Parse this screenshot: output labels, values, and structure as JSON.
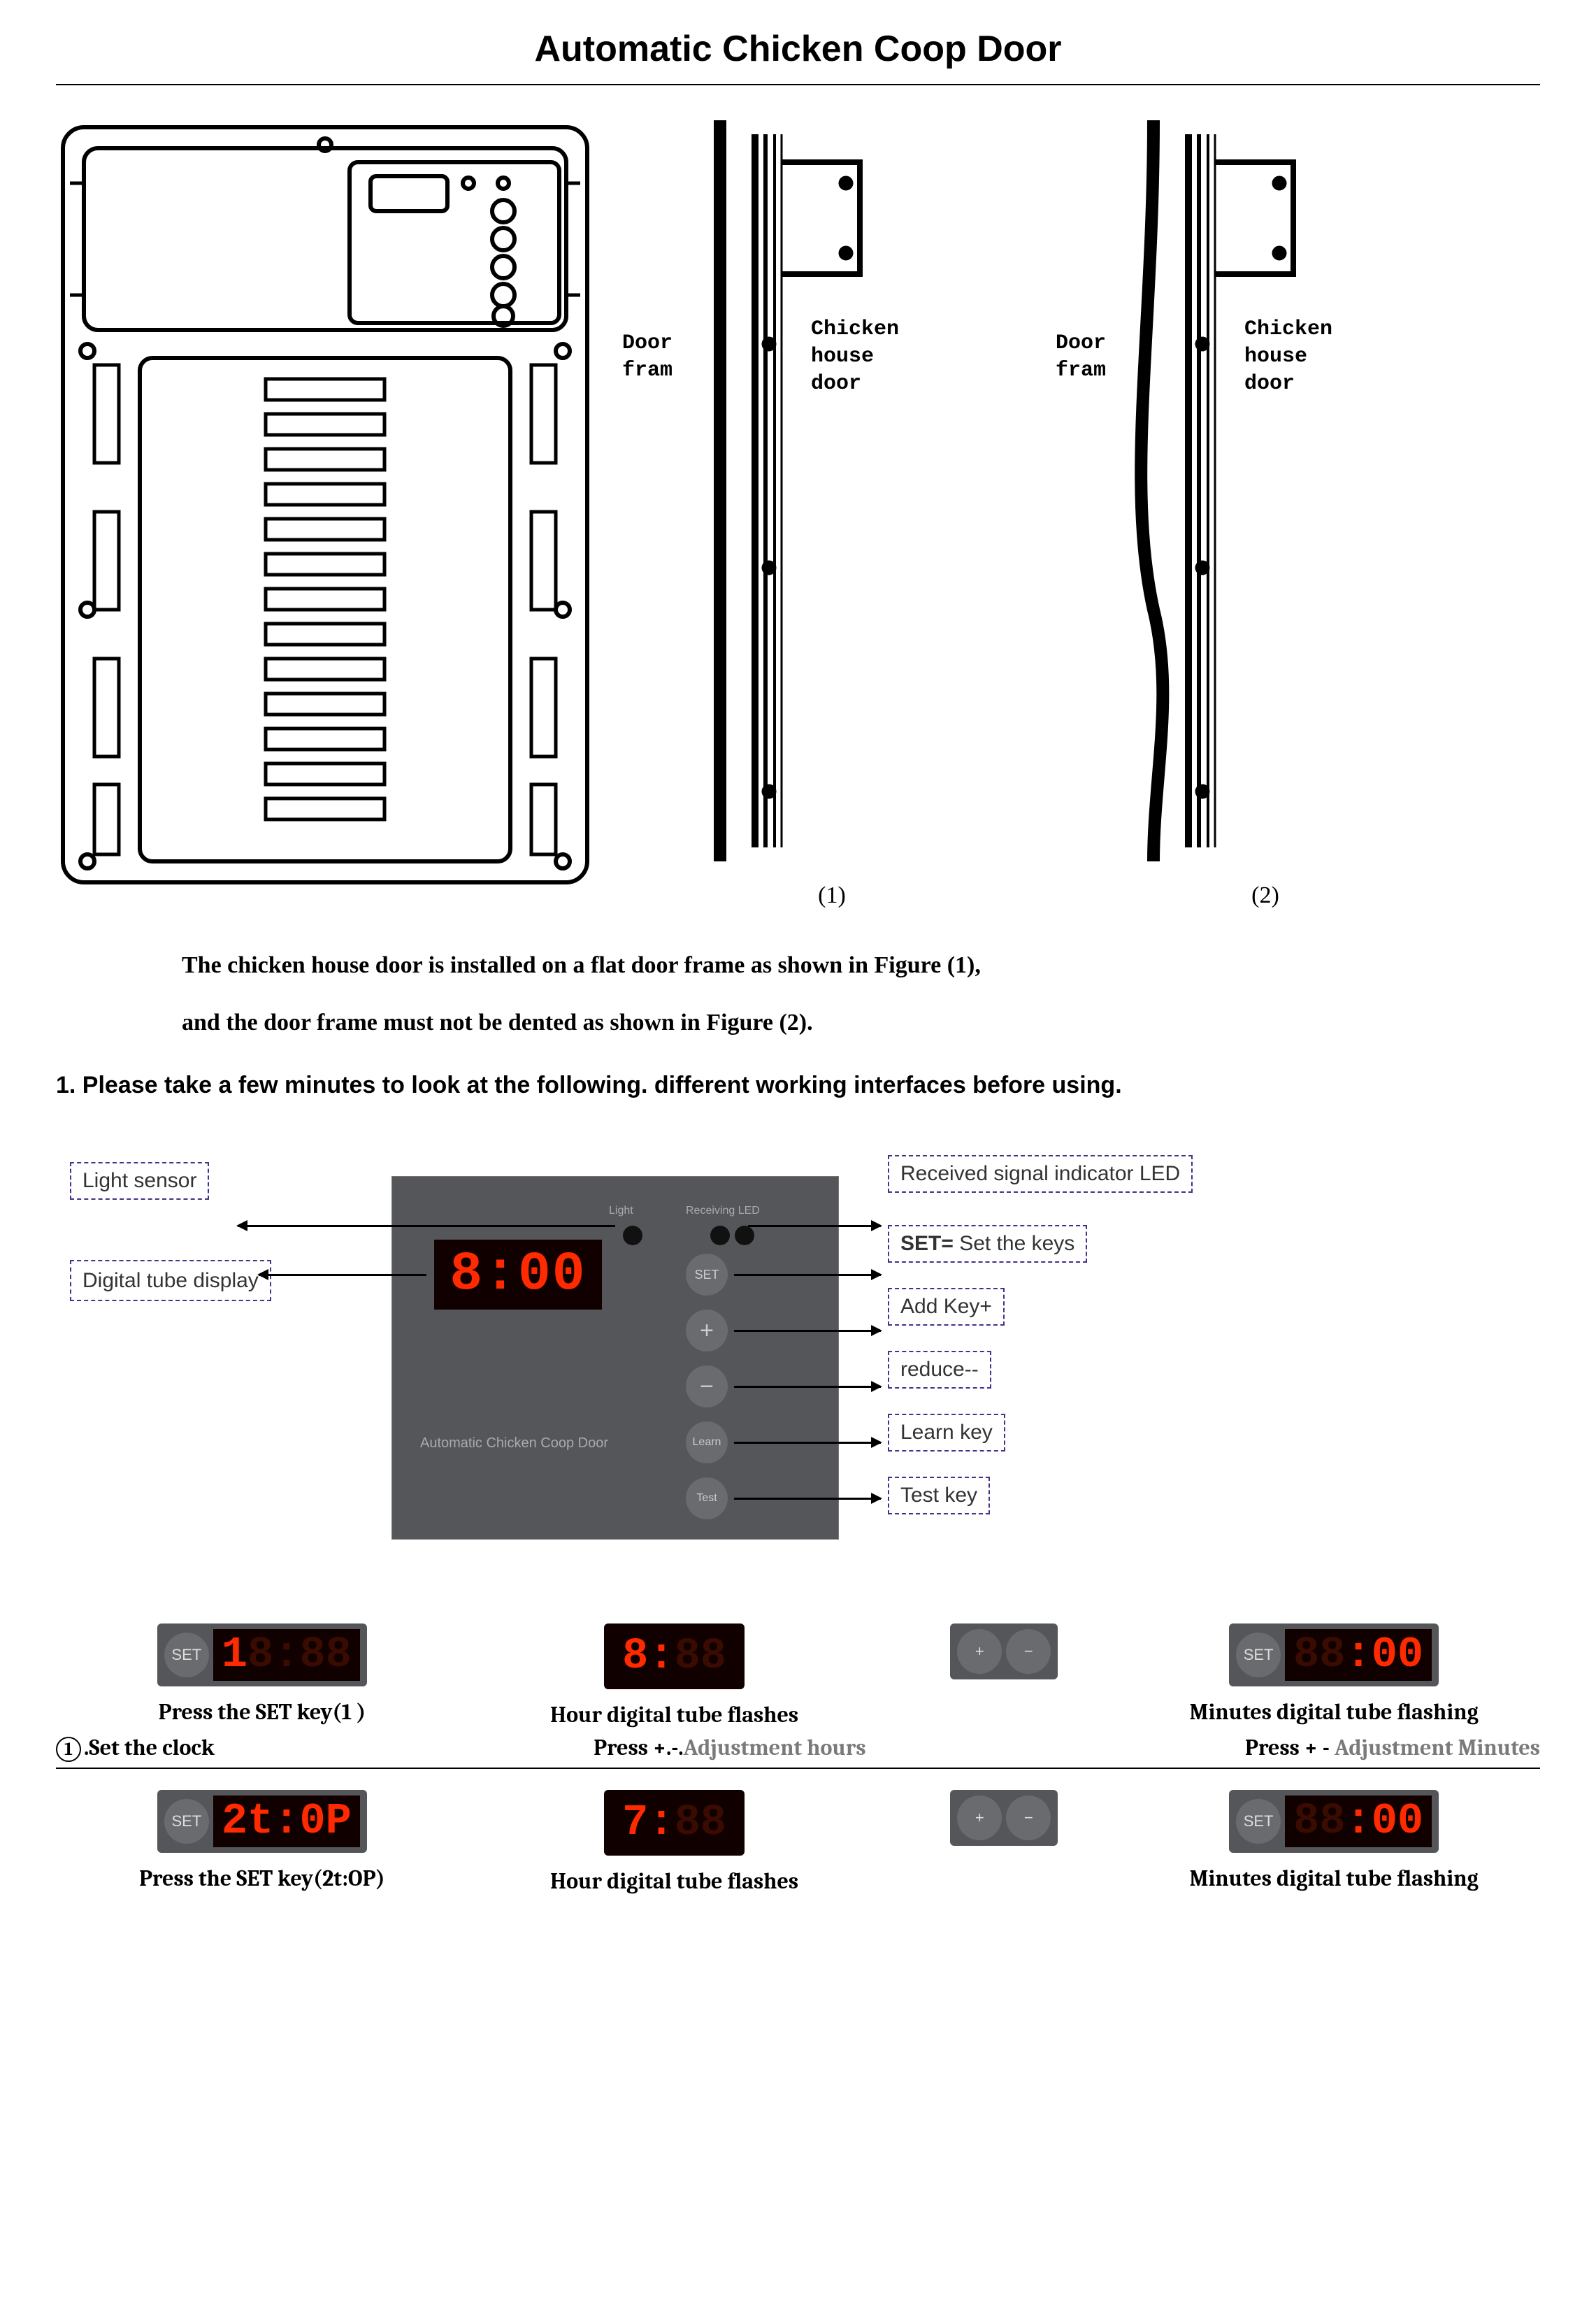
{
  "title": "Automatic Chicken Coop Door",
  "side_diagrams": {
    "frame_label": "Door\nfram",
    "door_label": "Chicken\nhouse\ndoor",
    "fig1": "(1)",
    "fig2": "(2)"
  },
  "install_note_line1": "The chicken house door is installed on a flat door frame as shown in Figure (1),",
  "install_note_line2": "and the door frame must not be dented as shown in Figure (2).",
  "section1_heading": "1. Please take a few minutes to look at the following. different working interfaces before using.",
  "panel": {
    "display_value": "8:00",
    "brand_text": "Automatic Chicken Coop Door",
    "light_label": "Light",
    "receiving_label": "Receiving LED",
    "buttons": {
      "set": "SET",
      "plus": "+",
      "minus": "−",
      "learn": "Learn",
      "test": "Test"
    },
    "callouts": {
      "light_sensor": "Light sensor",
      "digital_tube": "Digital tube display",
      "received_led": "Received signal indicator LED",
      "set_keys_prefix": "SET=",
      "set_keys": " Set the keys",
      "add_key": "Add Key+",
      "reduce": "reduce--",
      "learn_key": "Learn key",
      "test_key": "Test key"
    }
  },
  "steps_row1": {
    "c1_display": "1",
    "c1_caption": "Press the SET key(1 )",
    "c2_display": "8:",
    "c2_caption": "Hour digital tube flashes",
    "c4_display": ":00",
    "c4_caption": "Minutes digital tube flashing"
  },
  "sub_row": {
    "left_num": "1",
    "left_text": ".Set the clock",
    "mid_bold": "Press +.-.",
    "mid_grey": "Adjustment hours",
    "right_bold": "Press + - ",
    "right_grey": "Adjustment Minutes"
  },
  "steps_row2": {
    "c1_display": "2t:0P",
    "c1_caption": "Press the SET key(2t:OP)",
    "c2_display": "7:",
    "c2_caption": "Hour digital tube flashes",
    "c4_display": ":00",
    "c4_caption": "Minutes digital tube flashing"
  },
  "colors": {
    "seg_red": "#ff2a00",
    "seg_dim": "#3a0b00",
    "panel_bg": "#555659",
    "dash_border": "#4a2e8a"
  }
}
